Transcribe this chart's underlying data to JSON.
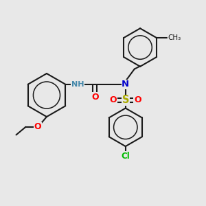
{
  "bg_color": "#e8e8e8",
  "bond_color": "#1a1a1a",
  "bond_width": 1.5,
  "atom_colors": {
    "N": "#0000cc",
    "O": "#ff0000",
    "S": "#aaaa00",
    "Cl": "#00bb00",
    "NH": "#4488aa"
  },
  "font_size": 8.5,
  "figsize": [
    3.0,
    3.0
  ],
  "dpi": 100
}
